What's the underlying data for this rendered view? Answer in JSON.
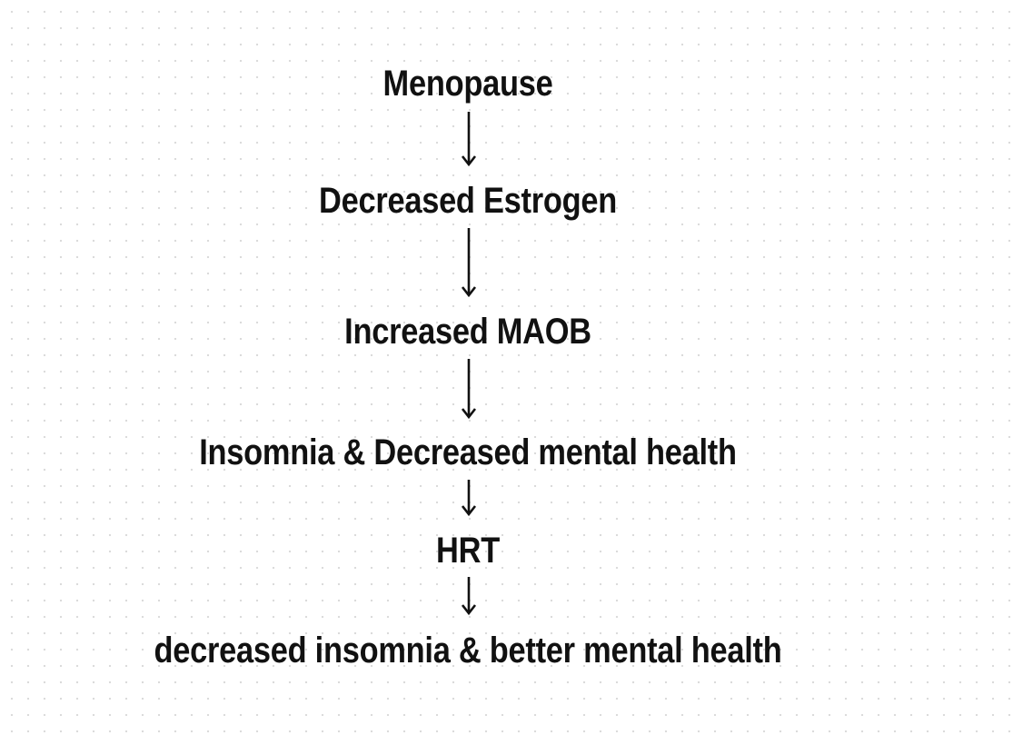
{
  "diagram": {
    "nodes": [
      {
        "label": "Menopause"
      },
      {
        "label": "Decreased Estrogen"
      },
      {
        "label": "Increased MAOB"
      },
      {
        "label": "Insomnia & Decreased mental health"
      },
      {
        "label": "HRT"
      },
      {
        "label": "decreased insomnia & better mental health"
      }
    ],
    "edges": [
      {
        "from": "Menopause",
        "to": "Decreased Estrogen"
      },
      {
        "from": "Decreased Estrogen",
        "to": "Increased MAOB"
      },
      {
        "from": "Increased MAOB",
        "to": "Insomnia & Decreased mental health"
      },
      {
        "from": "Insomnia & Decreased mental health",
        "to": "HRT"
      },
      {
        "from": "HRT",
        "to": "decreased insomnia & better mental health"
      }
    ]
  },
  "colors": {
    "text": "#111111",
    "arrow": "#111111",
    "background": "#ffffff",
    "grid_dots": "#d9d9d9"
  }
}
